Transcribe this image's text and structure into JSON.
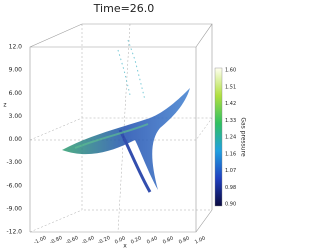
{
  "title": "Time=26.0",
  "z_axis": {
    "label": "z",
    "ticks": [
      "12.0",
      "9.00",
      "6.00",
      "3.00",
      "0.00",
      "-3.00",
      "-6.00",
      "-9.00",
      "-12.0"
    ]
  },
  "x_axis": {
    "label": "x",
    "ticks": [
      "-1.00",
      "-0.80",
      "-0.60",
      "-0.40",
      "-0.20",
      "0.00",
      "0.20",
      "0.40",
      "0.60",
      "0.80",
      "1.00"
    ]
  },
  "colorbar": {
    "label": "Gas pressure",
    "ticks": [
      "1.60",
      "1.51",
      "1.42",
      "1.33",
      "1.24",
      "1.16",
      "1.07",
      "0.98",
      "0.90"
    ]
  }
}
